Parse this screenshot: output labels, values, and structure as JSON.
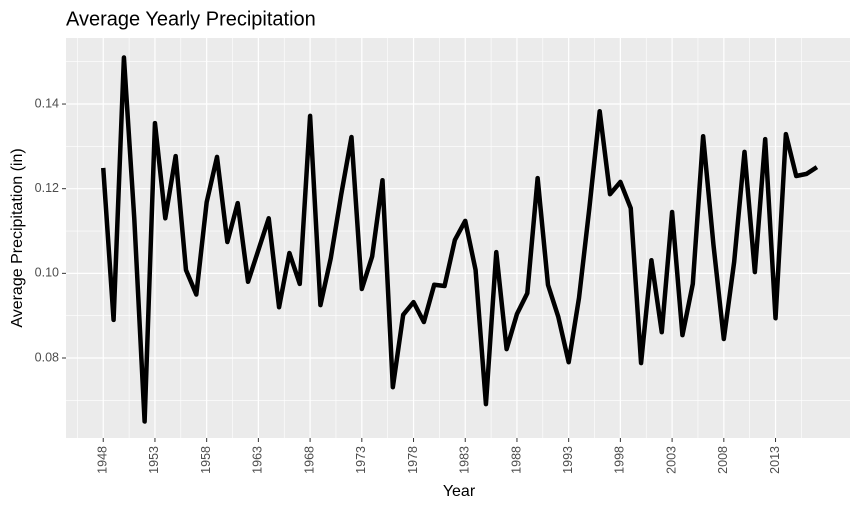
{
  "chart_data": {
    "type": "line",
    "title": "Average Yearly Precipitation",
    "x_label": "Year",
    "y_label": "Average Precipitation (in)",
    "x": [
      1948,
      1949,
      1950,
      1951,
      1952,
      1953,
      1954,
      1955,
      1956,
      1957,
      1958,
      1959,
      1960,
      1961,
      1962,
      1963,
      1964,
      1965,
      1966,
      1967,
      1968,
      1969,
      1970,
      1971,
      1972,
      1973,
      1974,
      1975,
      1976,
      1977,
      1978,
      1979,
      1980,
      1981,
      1982,
      1983,
      1984,
      1985,
      1986,
      1987,
      1988,
      1989,
      1990,
      1991,
      1992,
      1993,
      1994,
      1995,
      1996,
      1997,
      1998,
      1999,
      2000,
      2001,
      2002,
      2003,
      2004,
      2005,
      2006,
      2007,
      2008,
      2009,
      2010,
      2011,
      2012,
      2013,
      2014,
      2015,
      2016,
      2017
    ],
    "series": [
      {
        "name": "Average Precipitation",
        "color": "#000000",
        "values": [
          0.1249,
          0.089,
          0.151,
          0.113,
          0.065,
          0.1355,
          0.113,
          0.1277,
          0.1008,
          0.095,
          0.1168,
          0.1275,
          0.1074,
          0.1166,
          0.098,
          0.1055,
          0.113,
          0.092,
          0.1048,
          0.0975,
          0.1372,
          0.0925,
          0.1036,
          0.1185,
          0.1322,
          0.0963,
          0.104,
          0.122,
          0.0731,
          0.0902,
          0.0932,
          0.0885,
          0.0973,
          0.097,
          0.1079,
          0.1124,
          0.1008,
          0.0691,
          0.105,
          0.0821,
          0.0904,
          0.0953,
          0.1225,
          0.0973,
          0.0897,
          0.079,
          0.0942,
          0.1154,
          0.1383,
          0.1187,
          0.1216,
          0.1154,
          0.0788,
          0.1031,
          0.0861,
          0.1145,
          0.0854,
          0.0975,
          0.1324,
          0.1067,
          0.0845,
          0.1027,
          0.1287,
          0.1003,
          0.1317,
          0.0894,
          0.1329,
          0.123,
          0.1235,
          0.1251
        ]
      }
    ],
    "xlim": [
      1944.4,
      2020.2
    ],
    "ylim": [
      0.0611,
      0.1556
    ],
    "xticks": [
      1948,
      1953,
      1958,
      1963,
      1968,
      1973,
      1978,
      1983,
      1988,
      1993,
      1998,
      2003,
      2008,
      2013
    ],
    "yticks": [
      0.08,
      {
        "value": 0.1,
        "label": "0.10"
      },
      0.12,
      0.14
    ],
    "grid": true
  }
}
